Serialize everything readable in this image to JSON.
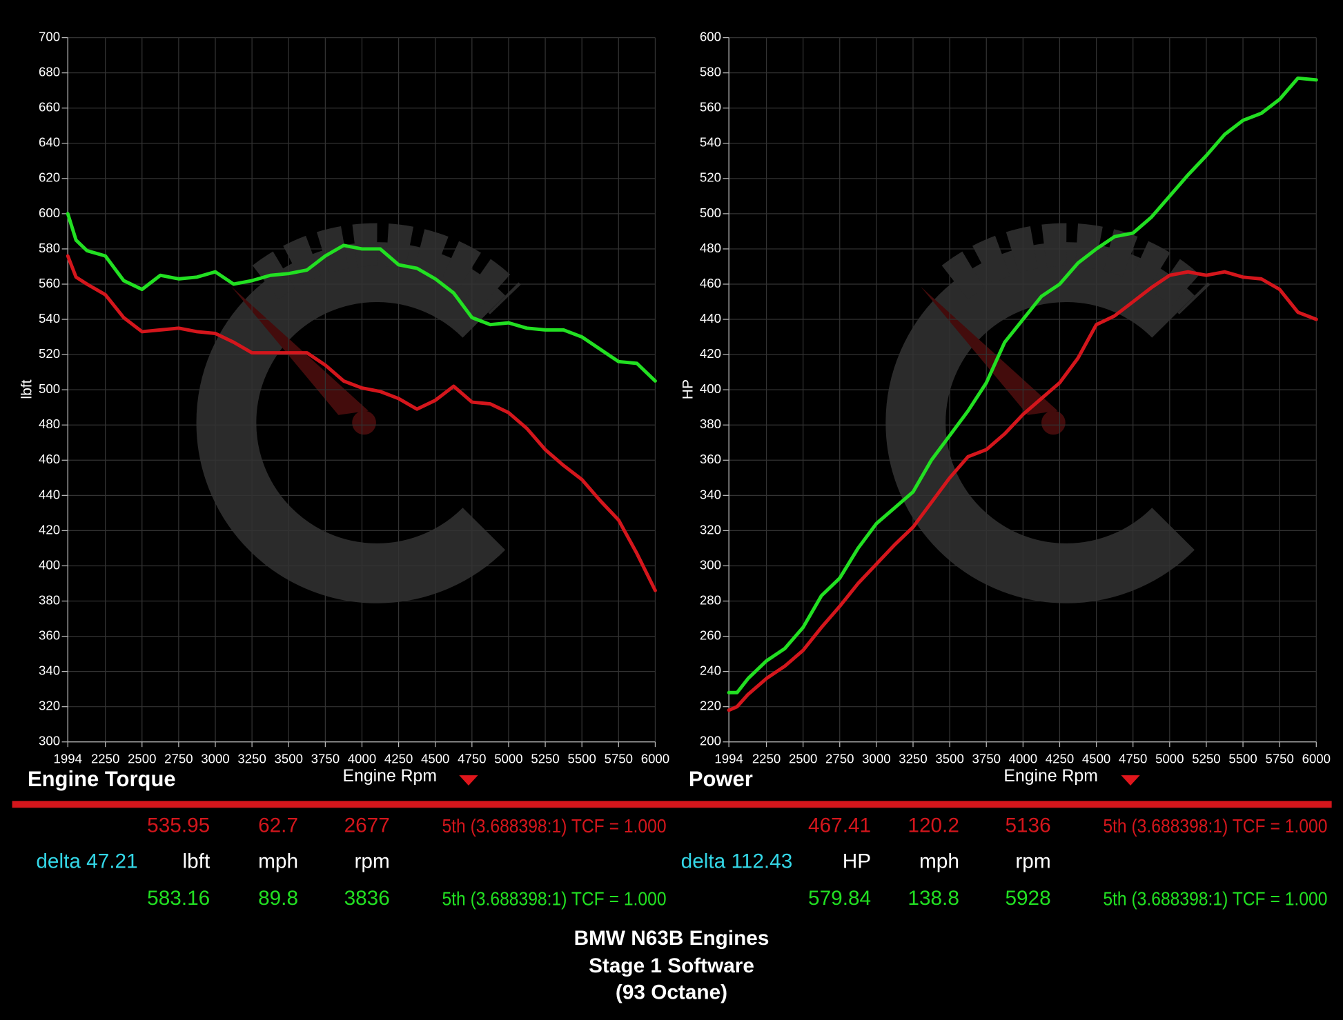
{
  "chart_data": [
    {
      "type": "line",
      "title": "Engine Torque",
      "xlabel": "Engine Rpm",
      "ylabel": "lbft",
      "x": [
        1994,
        2050,
        2125,
        2250,
        2375,
        2500,
        2625,
        2750,
        2875,
        3000,
        3125,
        3250,
        3375,
        3500,
        3625,
        3750,
        3875,
        4000,
        4125,
        4250,
        4375,
        4500,
        4625,
        4750,
        4875,
        5000,
        5125,
        5250,
        5375,
        5500,
        5625,
        5750,
        5875,
        6000
      ],
      "series": [
        {
          "color": "#d4161c",
          "values": [
            576,
            564,
            560,
            554,
            541,
            533,
            534,
            535,
            533,
            532,
            527,
            521,
            521,
            521,
            521,
            514,
            505,
            501,
            499,
            495,
            489,
            494,
            502,
            493,
            492,
            487,
            478,
            466,
            457,
            449,
            437,
            426,
            407,
            386
          ]
        },
        {
          "color": "#22e022",
          "values": [
            600,
            585,
            579,
            576,
            562,
            557,
            565,
            563,
            564,
            567,
            560,
            562,
            565,
            566,
            568,
            576,
            582,
            580,
            580,
            571,
            569,
            563,
            555,
            541,
            537,
            538,
            535,
            534,
            534,
            530,
            523,
            516,
            515,
            505
          ]
        }
      ],
      "xlim": [
        1994,
        6000
      ],
      "xticks": [
        1994,
        2250,
        2500,
        2750,
        3000,
        3250,
        3500,
        3750,
        4000,
        4250,
        4500,
        4750,
        5000,
        5250,
        5500,
        5750,
        6000
      ],
      "ylim": [
        300,
        700
      ],
      "yticks": [
        300,
        320,
        340,
        360,
        380,
        400,
        420,
        440,
        460,
        480,
        500,
        520,
        540,
        560,
        580,
        600,
        620,
        640,
        660,
        680,
        700
      ],
      "grid": true,
      "readout": {
        "red": [
          535.95,
          62.7,
          2677
        ],
        "red_gear": "5th (3.688398:1) TCF = 1.000",
        "delta": "delta 47.21",
        "units": [
          "lbft",
          "mph",
          "rpm"
        ],
        "green": [
          583.16,
          89.8,
          3836
        ],
        "green_gear": "5th (3.688398:1) TCF = 1.000"
      }
    },
    {
      "type": "line",
      "title": "Power",
      "xlabel": "Engine Rpm",
      "ylabel": "HP",
      "x": [
        1994,
        2050,
        2125,
        2250,
        2375,
        2500,
        2625,
        2750,
        2875,
        3000,
        3125,
        3250,
        3375,
        3500,
        3625,
        3750,
        3875,
        4000,
        4125,
        4250,
        4375,
        4500,
        4625,
        4750,
        4875,
        5000,
        5125,
        5250,
        5375,
        5500,
        5625,
        5750,
        5875,
        6000
      ],
      "series": [
        {
          "color": "#d4161c",
          "values": [
            218,
            220,
            227,
            236,
            243,
            252,
            265,
            277,
            290,
            301,
            312,
            322,
            336,
            350,
            362,
            366,
            375,
            386,
            395,
            404,
            418,
            437,
            442,
            450,
            458,
            465,
            467,
            465,
            467,
            464,
            463,
            457,
            444,
            440
          ]
        },
        {
          "color": "#22e022",
          "values": [
            228,
            228,
            236,
            246,
            253,
            265,
            283,
            293,
            310,
            324,
            333,
            342,
            360,
            374,
            388,
            404,
            427,
            440,
            453,
            460,
            472,
            480,
            487,
            489,
            498,
            510,
            522,
            533,
            545,
            553,
            557,
            565,
            577,
            576
          ]
        }
      ],
      "xlim": [
        1994,
        6000
      ],
      "xticks": [
        1994,
        2250,
        2500,
        2750,
        3000,
        3250,
        3500,
        3750,
        4000,
        4250,
        4500,
        4750,
        5000,
        5250,
        5500,
        5750,
        6000
      ],
      "ylim": [
        200,
        600
      ],
      "yticks": [
        200,
        220,
        240,
        260,
        280,
        300,
        320,
        340,
        360,
        380,
        400,
        420,
        440,
        460,
        480,
        500,
        520,
        540,
        560,
        580,
        600
      ],
      "grid": true,
      "readout": {
        "red": [
          467.41,
          120.2,
          5136
        ],
        "red_gear": "5th (3.688398:1) TCF = 1.000",
        "delta": "delta 112.43",
        "units": [
          "HP",
          "mph",
          "rpm"
        ],
        "green": [
          579.84,
          138.8,
          5928
        ],
        "green_gear": "5th (3.688398:1) TCF = 1.000"
      }
    }
  ],
  "footer": {
    "lines": [
      "BMW N63B Engines",
      "Stage 1 Software",
      "(93 Octane)"
    ]
  }
}
